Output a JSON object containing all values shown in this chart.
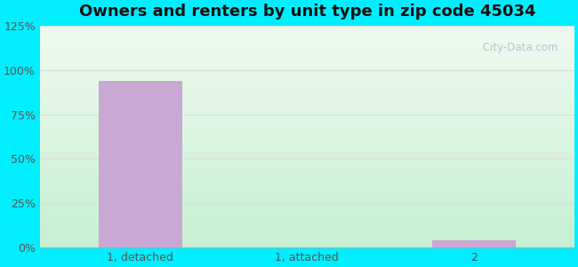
{
  "title": "Owners and renters by unit type in zip code 45034",
  "categories": [
    "1, detached",
    "1, attached",
    "2"
  ],
  "values": [
    94,
    0,
    4
  ],
  "bar_color": "#c9a8d4",
  "bar_width": 0.5,
  "ylim": [
    0,
    125
  ],
  "yticks": [
    0,
    25,
    50,
    75,
    100,
    125
  ],
  "ytick_labels": [
    "0%",
    "25%",
    "50%",
    "75%",
    "100%",
    "125%"
  ],
  "background_outer": "#00eeff",
  "grid_color": "#dddddd",
  "title_fontsize": 13,
  "tick_fontsize": 9,
  "watermark": " City-Data.com",
  "fig_width": 6.5,
  "fig_height": 3.0,
  "dpi": 100
}
